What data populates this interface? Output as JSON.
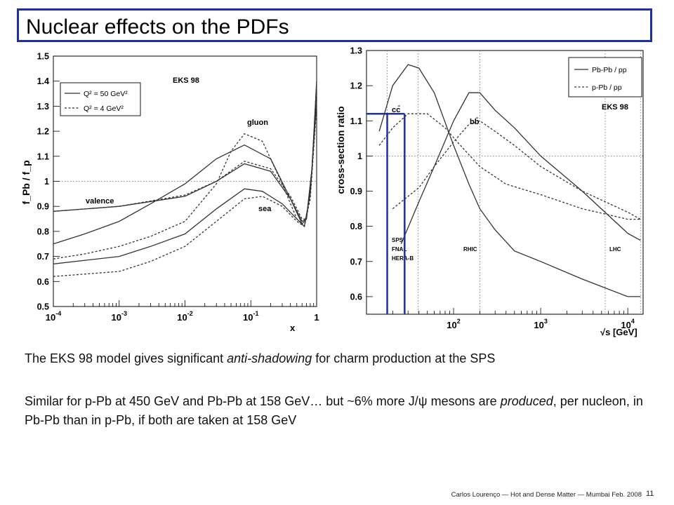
{
  "slide": {
    "title": "Nuclear effects on the PDFs",
    "para1": {
      "a": "The EKS 98 model gives significant ",
      "b": "anti-shadowing",
      "c": " for charm production at the SPS"
    },
    "para2": {
      "a": "Similar for p-Pb at 450 GeV and Pb-Pb at 158 GeV… but ~6% more J/",
      "psi": "ψ",
      "b": " mesons are ",
      "c": "produced",
      "d": ", per nucleon, in Pb-Pb than in p-Pb, if both are taken at 158 GeV"
    },
    "footer": "Carlos Lourenço — Hot and Dense Matter — Mumbai Feb. 2008",
    "page_number": "11"
  },
  "chart_data": [
    {
      "id": "left",
      "type": "line",
      "title": "EKS 98",
      "xlabel": "x",
      "ylabel": "f_Pb / f_p",
      "xscale": "log",
      "xlim": [
        0.0001,
        1
      ],
      "ylim": [
        0.5,
        1.5
      ],
      "xticks": [
        {
          "v": 0.0001,
          "base": "10",
          "exp": "-4"
        },
        {
          "v": 0.001,
          "base": "10",
          "exp": "-3"
        },
        {
          "v": 0.01,
          "base": "10",
          "exp": "-2"
        },
        {
          "v": 0.1,
          "base": "10",
          "exp": "-1"
        },
        {
          "v": 1,
          "base": "1",
          "exp": ""
        }
      ],
      "yticks": [
        "0.5",
        "0.6",
        "0.7",
        "0.8",
        "0.9",
        "1",
        "1.1",
        "1.2",
        "1.3",
        "1.4",
        "1.5"
      ],
      "reference_line": 1,
      "legend": [
        {
          "label": "Q² = 50 GeV²",
          "style": "solid"
        },
        {
          "label": "Q² = 4 GeV²",
          "style": "dashed"
        }
      ],
      "annotations": [
        "gluon",
        "valence",
        "sea"
      ],
      "series": [
        {
          "style": "solid",
          "x": [
            0.0001,
            0.0003,
            0.001,
            0.003,
            0.01,
            0.03,
            0.08,
            0.2,
            0.4,
            0.6,
            0.7,
            0.85,
            1.0
          ],
          "y": [
            0.75,
            0.79,
            0.84,
            0.91,
            0.99,
            1.09,
            1.145,
            1.09,
            0.93,
            0.83,
            0.85,
            1.05,
            1.38
          ]
        },
        {
          "style": "dashed",
          "x": [
            0.0001,
            0.0003,
            0.001,
            0.003,
            0.01,
            0.03,
            0.05,
            0.08,
            0.15,
            0.3,
            0.5,
            0.65,
            0.8,
            1.0
          ],
          "y": [
            0.69,
            0.71,
            0.74,
            0.78,
            0.84,
            0.99,
            1.12,
            1.19,
            1.16,
            0.99,
            0.85,
            0.82,
            0.95,
            1.35
          ]
        },
        {
          "style": "solid",
          "x": [
            0.0001,
            0.001,
            0.01,
            0.03,
            0.08,
            0.2,
            0.4,
            0.6,
            0.7,
            0.85,
            1.0
          ],
          "y": [
            0.88,
            0.9,
            0.94,
            1.0,
            1.07,
            1.04,
            0.93,
            0.84,
            0.85,
            1.05,
            1.4
          ]
        },
        {
          "style": "dashed",
          "x": [
            0.0001,
            0.001,
            0.01,
            0.03,
            0.08,
            0.2,
            0.4,
            0.6,
            0.7,
            0.85,
            1.0
          ],
          "y": [
            0.88,
            0.9,
            0.945,
            1.0,
            1.08,
            1.05,
            0.94,
            0.85,
            0.85,
            1.05,
            1.4
          ]
        },
        {
          "style": "solid",
          "x": [
            0.0001,
            0.001,
            0.003,
            0.01,
            0.03,
            0.08,
            0.15,
            0.3,
            0.5,
            0.65,
            0.8,
            1.0
          ],
          "y": [
            0.67,
            0.7,
            0.74,
            0.79,
            0.89,
            0.97,
            0.96,
            0.91,
            0.85,
            0.82,
            0.95,
            1.32
          ]
        },
        {
          "style": "dashed",
          "x": [
            0.0001,
            0.001,
            0.003,
            0.01,
            0.03,
            0.08,
            0.15,
            0.3,
            0.5,
            0.65,
            0.8,
            1.0
          ],
          "y": [
            0.62,
            0.64,
            0.68,
            0.74,
            0.84,
            0.93,
            0.94,
            0.9,
            0.84,
            0.82,
            0.93,
            1.3
          ]
        }
      ]
    },
    {
      "id": "right",
      "type": "line",
      "title": "EKS 98",
      "xlabel": "√s [GeV]",
      "ylabel": "cross-section ratio",
      "xscale": "log",
      "xlim": [
        10,
        15000
      ],
      "ylim": [
        0.55,
        1.3
      ],
      "xticks": [
        {
          "v": 100,
          "base": "10",
          "exp": "2"
        },
        {
          "v": 1000,
          "base": "10",
          "exp": "3"
        },
        {
          "v": 10000,
          "base": "10",
          "exp": "4"
        }
      ],
      "yticks": [
        "0.6",
        "0.7",
        "0.8",
        "0.9",
        "1",
        "1.1",
        "1.2",
        "1.3"
      ],
      "reference_line": 1,
      "legend": [
        {
          "label": "Pb-Pb / pp",
          "style": "solid"
        },
        {
          "label": "p-Pb / pp",
          "style": "dashed"
        }
      ],
      "annotations": [
        "cc̄",
        "bb̄",
        "SPS",
        "FNAL",
        "HERA-B",
        "RHIC",
        "LHC"
      ],
      "facility_lines": [
        {
          "name": "SPS",
          "x": 17.3
        },
        {
          "name": "FNAL",
          "x": 39
        },
        {
          "name": "RHIC",
          "x": 200
        },
        {
          "name": "LHC",
          "x": 5500
        },
        {
          "name": "LHC",
          "x": 14000
        }
      ],
      "highlight": [
        {
          "x": 17.3,
          "y": 1.12
        },
        {
          "x": 27.4,
          "y": 1.12
        }
      ],
      "highlight_color": "#1f2fa8",
      "series": [
        {
          "name": "Pb-Pb / pp",
          "group": "cc̄",
          "style": "solid",
          "x": [
            14,
            20,
            30,
            40,
            60,
            100,
            150,
            200,
            300,
            500,
            1000,
            3000,
            10000,
            14000
          ],
          "y": [
            1.07,
            1.2,
            1.26,
            1.25,
            1.18,
            1.03,
            0.92,
            0.85,
            0.79,
            0.73,
            0.7,
            0.65,
            0.6,
            0.6
          ]
        },
        {
          "name": "p-Pb / pp",
          "group": "cc̄",
          "style": "dashed",
          "x": [
            14,
            20,
            30,
            50,
            80,
            120,
            200,
            400,
            1000,
            3000,
            10000,
            14000
          ],
          "y": [
            1.03,
            1.08,
            1.12,
            1.12,
            1.08,
            1.03,
            0.97,
            0.92,
            0.89,
            0.85,
            0.82,
            0.82
          ]
        },
        {
          "name": "Pb-Pb / pp",
          "group": "bb̄",
          "style": "solid",
          "x": [
            25,
            40,
            60,
            100,
            150,
            200,
            300,
            500,
            1000,
            3000,
            10000,
            14000
          ],
          "y": [
            0.75,
            0.87,
            0.97,
            1.1,
            1.18,
            1.18,
            1.13,
            1.08,
            1.0,
            0.9,
            0.78,
            0.76
          ]
        },
        {
          "name": "p-Pb / pp",
          "group": "bb̄",
          "style": "dashed",
          "x": [
            20,
            40,
            60,
            100,
            150,
            200,
            300,
            500,
            1000,
            3000,
            10000,
            14000
          ],
          "y": [
            0.85,
            0.91,
            0.97,
            1.04,
            1.09,
            1.1,
            1.07,
            1.03,
            0.97,
            0.9,
            0.84,
            0.82
          ]
        }
      ]
    }
  ]
}
